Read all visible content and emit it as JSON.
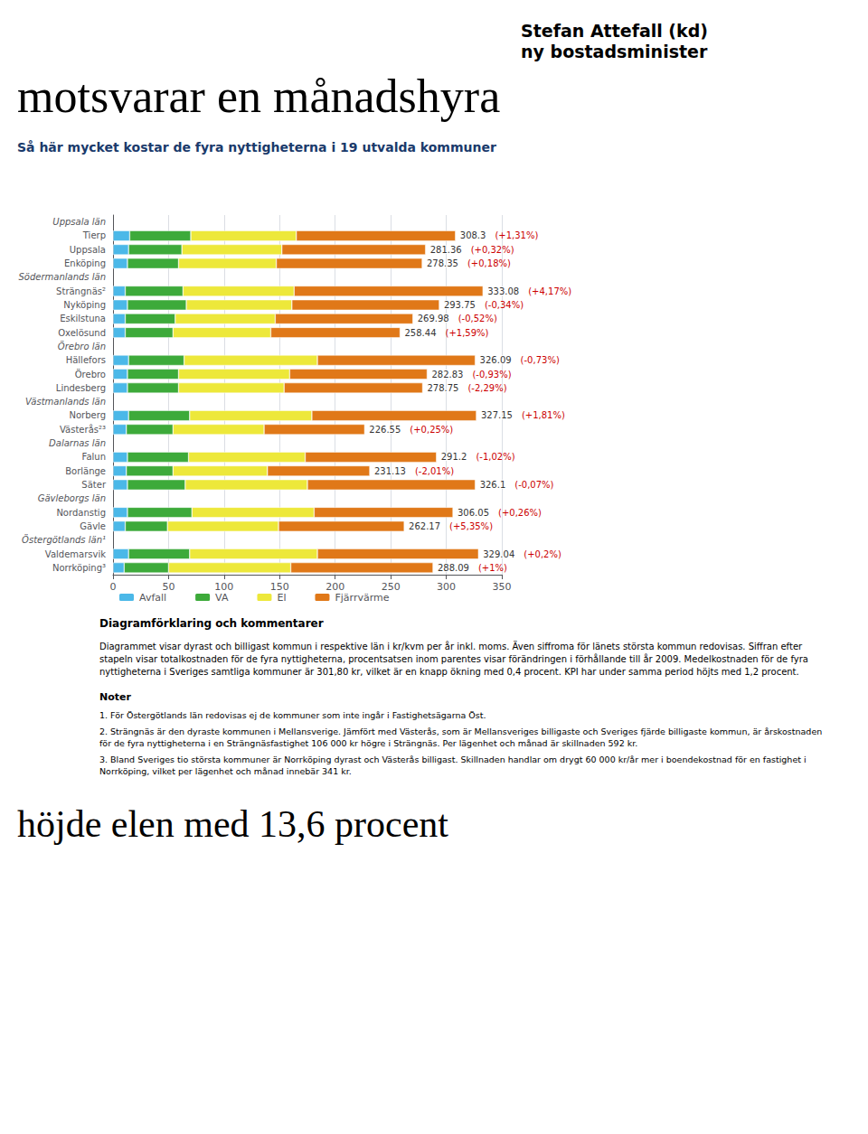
{
  "chart_data": {
    "type": "bar",
    "orientation": "horizontal",
    "stacked": true,
    "title": "motsvarar en månadshyra",
    "subtitle": "Så här mycket kostar de fyra nyttigheterna i 19 utvalda kommuner",
    "side_titles": [
      "Stefan Attefall (kd)",
      "ny bostadsminister"
    ],
    "bottom_title": "höjde elen med 13,6 procent",
    "categories": [
      "Uppsala län",
      "Tierp",
      "Uppsala",
      "Enköping",
      "Södermanlands län",
      "Strängnäs²",
      "Nyköping",
      "Eskilstuna",
      "Oxelösund",
      "Örebro län",
      "Hällefors",
      "Örebro",
      "Lindesberg",
      "Västmanlands län",
      "Norberg",
      "Västerås²³",
      "Dalarnas län",
      "Falun",
      "Borlänge",
      "Säter",
      "Gävleborgs län",
      "Nordanstig",
      "Gävle",
      "Östergötlands län¹",
      "Valdemarsvik",
      "Norrköping³"
    ],
    "headers": [
      "Uppsala län",
      "Södermanlands län",
      "Örebro län",
      "Västmanlands län",
      "Dalarnas län",
      "Gävleborgs län",
      "Östergötlands län¹"
    ],
    "series": [
      {
        "name": "Avfall",
        "color": "#4bb8e8",
        "values": [
          null,
          15,
          14,
          13,
          null,
          11,
          13,
          11,
          11,
          null,
          14,
          13,
          13,
          null,
          14,
          12,
          null,
          13,
          12,
          13,
          null,
          13,
          11,
          null,
          14,
          10
        ]
      },
      {
        "name": "VA",
        "color": "#3daa3a",
        "values": [
          null,
          55,
          48,
          46,
          null,
          52,
          53,
          45,
          43,
          null,
          50,
          46,
          46,
          null,
          55,
          42,
          null,
          55,
          42,
          52,
          null,
          58,
          38,
          null,
          55,
          40
        ]
      },
      {
        "name": "El",
        "color": "#ede83a",
        "values": [
          null,
          95,
          90,
          88,
          null,
          100,
          95,
          90,
          88,
          null,
          120,
          100,
          95,
          null,
          110,
          82,
          null,
          105,
          85,
          110,
          null,
          110,
          100,
          null,
          115,
          110
        ]
      },
      {
        "name": "Fjärrvärme",
        "color": "#e07818",
        "values": [
          null,
          143.3,
          129.36,
          131.35,
          null,
          170.08,
          132.75,
          123.98,
          116.44,
          null,
          142.09,
          123.83,
          124.75,
          null,
          148.15,
          90.55,
          null,
          118.2,
          92.13,
          151.1,
          null,
          125.05,
          113.17,
          null,
          145.04,
          128.09
        ]
      }
    ],
    "totals": [
      null,
      308.3,
      281.36,
      278.35,
      null,
      333.08,
      293.75,
      269.98,
      258.44,
      null,
      326.09,
      282.83,
      278.75,
      null,
      327.15,
      226.55,
      null,
      291.2,
      231.13,
      326.1,
      null,
      306.05,
      262.17,
      null,
      329.04,
      288.09
    ],
    "changes": {
      "color": "#cc0000",
      "labels": [
        null,
        "(+1,31%)",
        "(+0,32%)",
        "(+0,18%)",
        null,
        "(+4,17%)",
        "(-0,34%)",
        "(-0,52%)",
        "(+1,59%)",
        null,
        "(-0,73%)",
        "(-0,93%)",
        "(-2,29%)",
        null,
        "(+1,81%)",
        "(+0,25%)",
        null,
        "(-1,02%)",
        "(-2,01%)",
        "(-0,07%)",
        null,
        "(+0,26%)",
        "(+5,35%)",
        null,
        "(+0,2%)",
        "(+1%)"
      ]
    },
    "xlim": [
      0,
      350
    ],
    "xticks": [
      0,
      50,
      100,
      150,
      200,
      250,
      300,
      350
    ],
    "grid": true,
    "legend": "bottom",
    "explanation_title": "Diagramförklaring och kommentarer",
    "explanation_text": "Diagrammet visar dyrast och billigast kommun i respektive län i kr/kvm per år inkl. moms. Även siffroma för länets största kommun redovisas. Siffran efter stapeln visar totalkostnaden för de fyra nyttigheterna, procentsatsen inom parentes visar förändringen i förhållande till år 2009. Medelkostnaden för de fyra nyttigheterna i Sveriges samtliga kommuner är 301,80 kr, vilket är en knapp ökning med 0,4 procent. KPI har under samma period höjts med 1,2 procent.",
    "notes_title": "Noter",
    "notes": [
      "1. För Östergötlands län redovisas ej de kommuner som inte ingår i Fastighetsägarna Öst.",
      "2. Strängnäs är den dyraste kommunen i Mellansverige. Jämfört med Västerås, som är Mellansveriges billigaste och Sveriges fjärde billigaste kommun, är årskostnaden för de fyra nyttigheterna i en Strängnäsfastighet 106 000 kr högre i Strängnäs. Per lägenhet och månad är skillnaden 592 kr.",
      "3. Bland Sveriges tio största kommuner är Norrköping dyrast och Västerås billigast. Skillnaden handlar om drygt 60 000 kr/år mer i boendekostnad för en fastighet i Norrköping, vilket per lägenhet och månad innebär 341 kr."
    ]
  }
}
